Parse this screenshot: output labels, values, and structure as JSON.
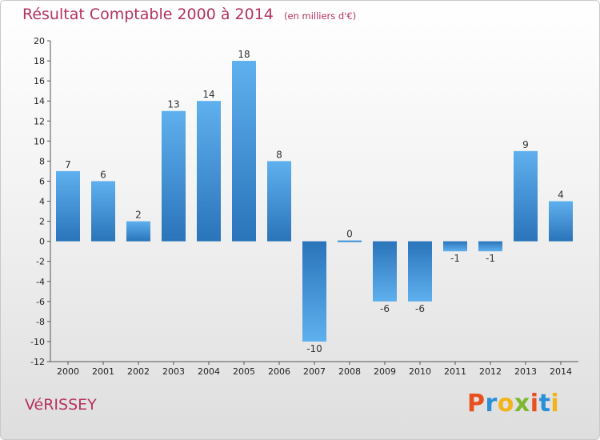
{
  "header": {
    "title": "Résultat Comptable 2000 à 2014",
    "subtitle": "(en milliers d'€)"
  },
  "footer": {
    "commune": "VéRISSEY",
    "logo": "Proxiti",
    "logo_colors": [
      "#e8501f",
      "#2b8fd8",
      "#f2b418",
      "#7cb82f",
      "#e8501f",
      "#2b8fd8",
      "#f2b418"
    ]
  },
  "chart_data": {
    "type": "bar",
    "categories": [
      "2000",
      "2001",
      "2002",
      "2003",
      "2004",
      "2005",
      "2006",
      "2007",
      "2008",
      "2009",
      "2010",
      "2011",
      "2012",
      "2013",
      "2014"
    ],
    "values": [
      7,
      6,
      2,
      13,
      14,
      18,
      8,
      -10,
      0,
      -6,
      -6,
      -1,
      -1,
      9,
      4
    ],
    "data_labels": [
      "7",
      "6",
      "2",
      "13",
      "14",
      "18",
      "8",
      "-10",
      "0",
      "-6",
      "-6",
      "-1",
      "-1",
      "9",
      "4"
    ],
    "title": "Résultat Comptable 2000 à 2014",
    "subtitle": "(en milliers d'€)",
    "xlabel": "",
    "ylabel": "",
    "ylim": [
      -12,
      20
    ],
    "yticks": [
      20,
      18,
      16,
      14,
      12,
      10,
      8,
      6,
      4,
      2,
      0,
      -2,
      -4,
      -6,
      -8,
      -10,
      -12
    ],
    "grid": false,
    "bar_color": "#3a8fd6",
    "bar_color_light": "#5fb0ee",
    "bar_color_dark": "#2a74ba"
  }
}
